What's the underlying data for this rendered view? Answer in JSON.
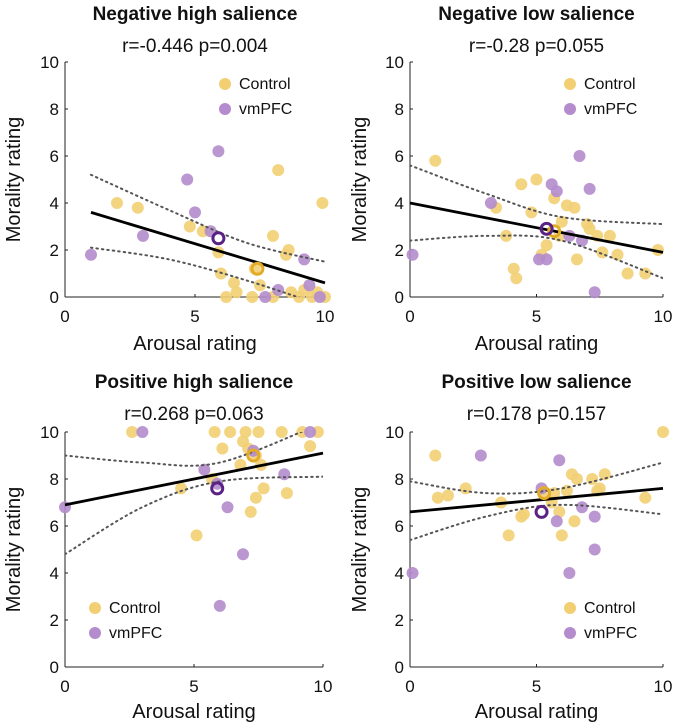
{
  "colors": {
    "control": "#f2cf73",
    "vmpfc": "#b48ccd",
    "control_mean": "#e3ac26",
    "vmpfc_mean": "#5a2285",
    "fit": "#000000",
    "ci": "#555555"
  },
  "legend": {
    "control": "Control",
    "vmpfc": "vmPFC"
  },
  "chart_data": [
    {
      "type": "scatter",
      "title": "Negative high salience",
      "stats": "r=-0.446 p=0.004",
      "xlabel": "Arousal rating",
      "ylabel": "Morality rating",
      "xlim": [
        0,
        10
      ],
      "ylim": [
        0,
        10
      ],
      "xticks": [
        "0",
        "5",
        "10"
      ],
      "yticks": [
        "0",
        "2",
        "4",
        "6",
        "8",
        "10"
      ],
      "legend_position": "top-right",
      "series": [
        {
          "name": "Control",
          "points": [
            [
              2,
              4
            ],
            [
              2.8,
              3.8
            ],
            [
              4.8,
              3
            ],
            [
              5.3,
              2.8
            ],
            [
              5.9,
              1.9
            ],
            [
              6,
              1
            ],
            [
              6.2,
              0
            ],
            [
              6.5,
              0.6
            ],
            [
              6.6,
              0.2
            ],
            [
              7.2,
              0
            ],
            [
              7.3,
              1.2
            ],
            [
              7.5,
              0.5
            ],
            [
              8,
              2.6
            ],
            [
              8,
              0
            ],
            [
              8.2,
              5.4
            ],
            [
              8.5,
              1.8
            ],
            [
              8.6,
              2
            ],
            [
              8.7,
              0.2
            ],
            [
              9,
              0
            ],
            [
              9.2,
              0.3
            ],
            [
              9.5,
              0
            ],
            [
              9.7,
              0.2
            ],
            [
              9.9,
              4
            ],
            [
              10,
              0
            ]
          ]
        },
        {
          "name": "vmPFC",
          "points": [
            [
              1,
              1.8
            ],
            [
              3,
              2.6
            ],
            [
              4.7,
              5
            ],
            [
              5,
              3.6
            ],
            [
              5.6,
              2.8
            ],
            [
              5.9,
              6.2
            ],
            [
              7.7,
              0
            ],
            [
              8.2,
              0.3
            ],
            [
              9.2,
              1.6
            ],
            [
              9.4,
              0.5
            ],
            [
              9.8,
              0
            ]
          ]
        }
      ],
      "means": {
        "Control": [
          7.4,
          1.2
        ],
        "vmPFC": [
          5.9,
          2.5
        ]
      },
      "fit": {
        "x": [
          1,
          10
        ],
        "y": [
          3.6,
          0.6
        ]
      },
      "ci_upper": {
        "x": [
          1,
          4,
          7,
          10
        ],
        "y": [
          5.2,
          3.7,
          2.3,
          1.5
        ]
      },
      "ci_lower": {
        "x": [
          1,
          4,
          7,
          10
        ],
        "y": [
          2.1,
          1.6,
          0.7,
          -0.4
        ]
      }
    },
    {
      "type": "scatter",
      "title": "Negative low salience",
      "stats": "r=-0.28 p=0.055",
      "xlabel": "Arousal rating",
      "ylabel": "Morality rating",
      "xlim": [
        0,
        10
      ],
      "ylim": [
        0,
        10
      ],
      "xticks": [
        "0",
        "5",
        "10"
      ],
      "yticks": [
        "0",
        "2",
        "4",
        "6",
        "8",
        "10"
      ],
      "legend_position": "top-right",
      "series": [
        {
          "name": "Control",
          "points": [
            [
              1,
              5.8
            ],
            [
              3.4,
              3.8
            ],
            [
              3.8,
              2.6
            ],
            [
              4.1,
              1.2
            ],
            [
              4.2,
              0.8
            ],
            [
              4.4,
              4.8
            ],
            [
              4.8,
              3.6
            ],
            [
              5,
              5
            ],
            [
              5.2,
              1.8
            ],
            [
              5.4,
              2.2
            ],
            [
              5.7,
              4.2
            ],
            [
              5.9,
              2.6
            ],
            [
              6,
              3.2
            ],
            [
              6.2,
              3.9
            ],
            [
              6.5,
              3.8
            ],
            [
              6.6,
              1.6
            ],
            [
              7,
              3.1
            ],
            [
              7.1,
              2.9
            ],
            [
              7.4,
              2.6
            ],
            [
              7.6,
              1.9
            ],
            [
              7.9,
              2.6
            ],
            [
              8.2,
              1.8
            ],
            [
              8.6,
              1
            ],
            [
              9.3,
              1
            ],
            [
              9.8,
              2
            ]
          ]
        },
        {
          "name": "vmPFC",
          "points": [
            [
              0.1,
              1.8
            ],
            [
              3.2,
              4
            ],
            [
              5.1,
              1.6
            ],
            [
              5.4,
              1.6
            ],
            [
              5.6,
              4.8
            ],
            [
              5.8,
              4.5
            ],
            [
              6.7,
              6
            ],
            [
              6.8,
              2.4
            ],
            [
              7.1,
              4.6
            ],
            [
              7.3,
              0.2
            ],
            [
              6.3,
              2.6
            ]
          ]
        }
      ],
      "means": {
        "Control": [
          5.7,
          2.8
        ],
        "vmPFC": [
          5.4,
          2.9
        ]
      },
      "fit": {
        "x": [
          0,
          10
        ],
        "y": [
          4.0,
          1.9
        ]
      },
      "ci_upper": {
        "x": [
          0,
          3,
          6,
          10
        ],
        "y": [
          5.6,
          4.4,
          3.4,
          3.1
        ]
      },
      "ci_lower": {
        "x": [
          0,
          3,
          6,
          10
        ],
        "y": [
          2.4,
          2.6,
          2.4,
          0.8
        ]
      }
    },
    {
      "type": "scatter",
      "title": "Positive high salience",
      "stats": "r=0.268 p=0.063",
      "xlabel": "Arousal rating",
      "ylabel": "Morality rating",
      "xlim": [
        0,
        10
      ],
      "ylim": [
        0,
        10
      ],
      "xticks": [
        "0",
        "5",
        "10"
      ],
      "yticks": [
        "0",
        "2",
        "4",
        "6",
        "8",
        "10"
      ],
      "legend_position": "bottom-left",
      "series": [
        {
          "name": "Control",
          "points": [
            [
              2.6,
              10
            ],
            [
              4.5,
              7.6
            ],
            [
              5.1,
              5.6
            ],
            [
              5.7,
              8
            ],
            [
              5.8,
              10
            ],
            [
              6.1,
              9.3
            ],
            [
              6.4,
              10
            ],
            [
              6.8,
              8.6
            ],
            [
              6.9,
              9.6
            ],
            [
              7,
              10
            ],
            [
              7.1,
              9.3
            ],
            [
              7.2,
              6.6
            ],
            [
              7.4,
              7.2
            ],
            [
              7.4,
              9
            ],
            [
              7.6,
              8.6
            ],
            [
              7.7,
              7.6
            ],
            [
              7.5,
              10
            ],
            [
              8.4,
              10
            ],
            [
              8.6,
              7.4
            ],
            [
              9.2,
              10
            ],
            [
              9.5,
              9.4
            ],
            [
              9.8,
              10
            ]
          ]
        },
        {
          "name": "vmPFC",
          "points": [
            [
              0,
              6.8
            ],
            [
              3,
              10
            ],
            [
              5.4,
              8.4
            ],
            [
              5.9,
              7.8
            ],
            [
              6,
              2.6
            ],
            [
              6.3,
              6.8
            ],
            [
              6.9,
              4.8
            ],
            [
              7.3,
              9.2
            ],
            [
              8.5,
              8.2
            ],
            [
              9.5,
              10
            ]
          ]
        }
      ],
      "means": {
        "Control": [
          7.3,
          9.0
        ],
        "vmPFC": [
          5.9,
          7.6
        ]
      },
      "fit": {
        "x": [
          0,
          10
        ],
        "y": [
          6.9,
          9.1
        ]
      },
      "ci_upper": {
        "x": [
          0,
          3,
          6,
          10
        ],
        "y": [
          9.0,
          8.7,
          8.7,
          10.4
        ]
      },
      "ci_lower": {
        "x": [
          0,
          3,
          6,
          10
        ],
        "y": [
          4.8,
          6.8,
          7.9,
          8.1
        ]
      }
    },
    {
      "type": "scatter",
      "title": "Positive low salience",
      "stats": "r=0.178 p=0.157",
      "xlabel": "Arousal rating",
      "ylabel": "Morality rating",
      "xlim": [
        0,
        10
      ],
      "ylim": [
        0,
        10
      ],
      "xticks": [
        "0",
        "5",
        "10"
      ],
      "yticks": [
        "0",
        "2",
        "4",
        "6",
        "8",
        "10"
      ],
      "legend_position": "bottom-right",
      "series": [
        {
          "name": "Control",
          "points": [
            [
              1,
              9
            ],
            [
              1.1,
              7.2
            ],
            [
              1.5,
              7.3
            ],
            [
              2.2,
              7.6
            ],
            [
              3.6,
              7
            ],
            [
              3.9,
              5.6
            ],
            [
              4.4,
              6.4
            ],
            [
              4.5,
              6.5
            ],
            [
              5.3,
              7.4
            ],
            [
              5.6,
              7
            ],
            [
              5.7,
              7.4
            ],
            [
              5.9,
              6.6
            ],
            [
              6,
              5.6
            ],
            [
              6.2,
              7.5
            ],
            [
              6.4,
              8.2
            ],
            [
              6.5,
              6.2
            ],
            [
              6.6,
              8
            ],
            [
              7.4,
              7.5
            ],
            [
              7.2,
              8
            ],
            [
              7.5,
              7.6
            ],
            [
              7.7,
              8.2
            ],
            [
              9.3,
              7.2
            ],
            [
              10,
              10
            ]
          ]
        },
        {
          "name": "vmPFC",
          "points": [
            [
              0.1,
              4
            ],
            [
              2.8,
              9
            ],
            [
              5.2,
              7.6
            ],
            [
              5.8,
              6.2
            ],
            [
              5.9,
              8.8
            ],
            [
              6.3,
              4
            ],
            [
              6.8,
              6.8
            ],
            [
              7.3,
              6.4
            ],
            [
              7.3,
              5
            ]
          ]
        }
      ],
      "means": {
        "Control": [
          5.3,
          7.4
        ],
        "vmPFC": [
          5.2,
          6.6
        ]
      },
      "fit": {
        "x": [
          0,
          10
        ],
        "y": [
          6.6,
          7.6
        ]
      },
      "ci_upper": {
        "x": [
          0,
          3,
          6,
          10
        ],
        "y": [
          7.9,
          7.4,
          7.6,
          8.7
        ]
      },
      "ci_lower": {
        "x": [
          0,
          3,
          6,
          10
        ],
        "y": [
          5.4,
          6.4,
          6.9,
          6.5
        ]
      }
    }
  ]
}
